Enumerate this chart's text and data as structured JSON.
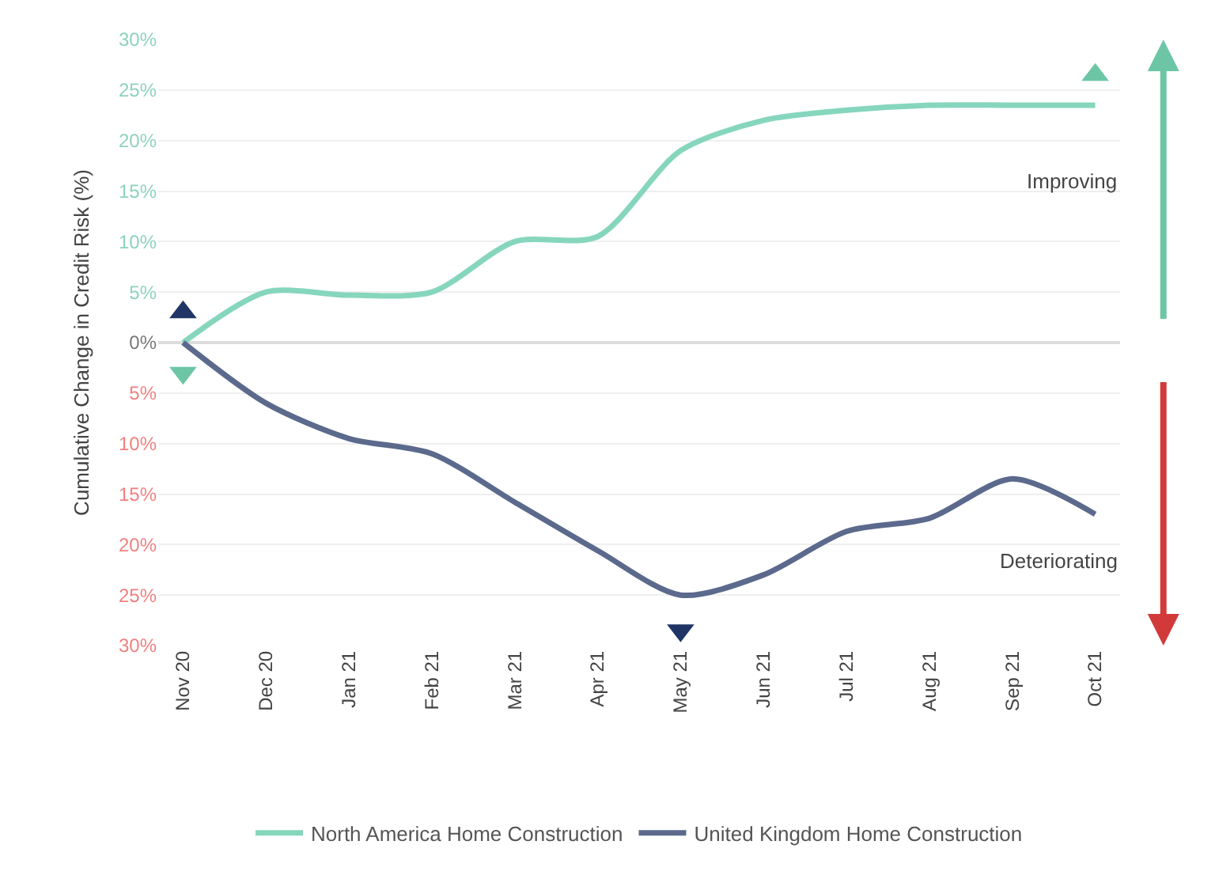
{
  "chart_data": {
    "type": "line",
    "ylabel": "Cumulative Change in Credit Risk (%)",
    "categories": [
      "Nov 20",
      "Dec 20",
      "Jan 21",
      "Feb 21",
      "Mar 21",
      "Apr 21",
      "May 21",
      "Jun 21",
      "Jul 21",
      "Aug 21",
      "Sep 21",
      "Oct 21"
    ],
    "series": [
      {
        "name": "North America Home Construction",
        "color": "#86d6bd",
        "values": [
          0,
          5,
          4.7,
          5,
          10,
          10.5,
          19,
          22,
          23,
          23.5,
          23.5,
          23.5
        ]
      },
      {
        "name": "United Kingdom Home Construction",
        "color": "#5b6a8c",
        "values": [
          0,
          -6,
          -9.5,
          -11,
          -15.8,
          -20.6,
          -25,
          -23,
          -18.7,
          -17.4,
          -13.5,
          -17
        ]
      },
      {
        "type": "scatter",
        "marker": "triangle",
        "color": "#6cc6a6",
        "x": [
          "Oct 21"
        ],
        "values": [
          26.5
        ]
      },
      {
        "type": "scatter",
        "marker": "triangle-down",
        "color": "#6cc6a6",
        "x": [
          "Nov 20"
        ],
        "values": [
          -3
        ]
      },
      {
        "type": "scatter",
        "marker": "triangle",
        "color": "#1f3566",
        "x": [
          "Nov 20"
        ],
        "values": [
          3
        ]
      },
      {
        "type": "scatter",
        "marker": "triangle-down",
        "color": "#1f3566",
        "x": [
          "May 21"
        ],
        "values": [
          -28.5
        ]
      }
    ],
    "ylim": [
      -30,
      30
    ],
    "yticks": [
      {
        "value": 30,
        "label": "30%"
      },
      {
        "value": 25,
        "label": "25%"
      },
      {
        "value": 20,
        "label": "20%"
      },
      {
        "value": 15,
        "label": "15%"
      },
      {
        "value": 10,
        "label": "10%"
      },
      {
        "value": 5,
        "label": "5%"
      },
      {
        "value": 0,
        "label": "0%"
      },
      {
        "value": -5,
        "label": "5%"
      },
      {
        "value": -10,
        "label": "10%"
      },
      {
        "value": -15,
        "label": "15%"
      },
      {
        "value": -20,
        "label": "20%"
      },
      {
        "value": -25,
        "label": "25%"
      },
      {
        "value": -30,
        "label": "30%"
      }
    ],
    "annotations": [
      "Improving",
      "Deteriorating"
    ],
    "grid": "y",
    "legend": "bottom"
  }
}
